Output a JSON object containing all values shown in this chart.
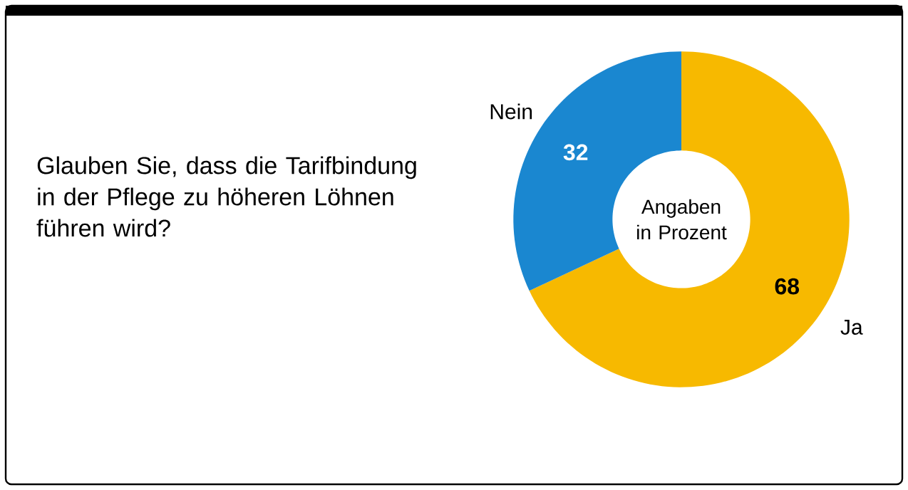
{
  "chart_data": {
    "type": "donut",
    "title": "Glauben Sie, dass die Tarifbindung in der Pflege zu höheren Löhnen führen wird?",
    "categories": [
      "Ja",
      "Nein"
    ],
    "values": [
      68,
      32
    ],
    "colors": [
      "#f7b900",
      "#1a87d0"
    ],
    "data_labels": true,
    "annotations": [
      "Angaben in Prozent"
    ]
  }
}
